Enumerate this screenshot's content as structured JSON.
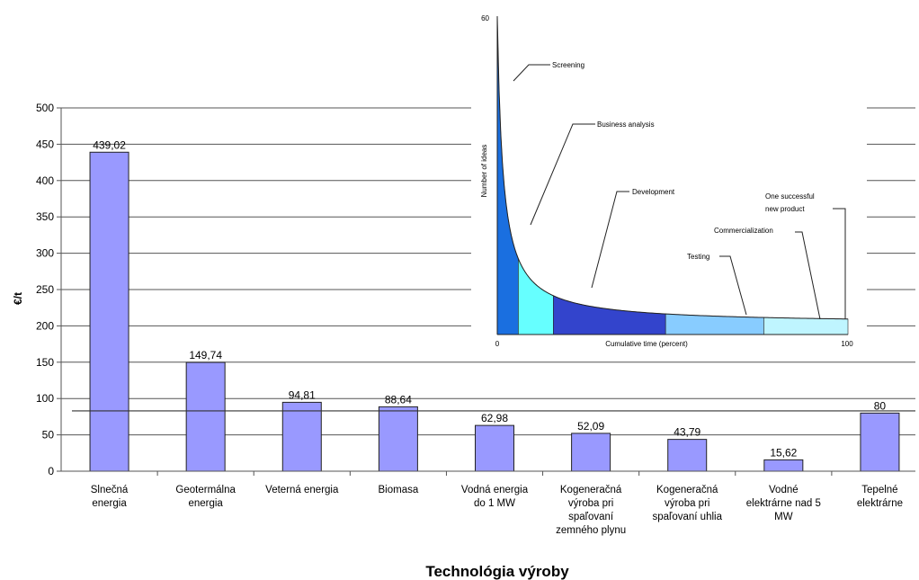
{
  "chart_data": [
    {
      "type": "bar",
      "xlabel": "Technológia výroby",
      "ylabel": "€/t",
      "ylim": [
        0,
        500
      ],
      "yticks": [
        0,
        50,
        100,
        150,
        200,
        250,
        300,
        350,
        400,
        450,
        500
      ],
      "reference_line": 83,
      "grid": true,
      "bar_color": "#9999ff",
      "categories": [
        [
          "Slnečná",
          "energia"
        ],
        [
          "Geotermálna",
          "energia"
        ],
        [
          "Veterná energia"
        ],
        [
          "Biomasa"
        ],
        [
          "Vodná energia",
          "do 1 MW"
        ],
        [
          "Kogeneračná",
          "výroba pri",
          "spaľovaní",
          "zemného plynu"
        ],
        [
          "Kogeneračná",
          "výroba pri",
          "spaľovaní uhlia"
        ],
        [
          "Vodné",
          "elektrárne nad 5",
          "MW"
        ],
        [
          "Tepelné",
          "elektrárne"
        ]
      ],
      "values": [
        439.02,
        149.74,
        94.81,
        88.64,
        62.98,
        52.09,
        43.79,
        15.62,
        80
      ],
      "value_labels": [
        "439,02",
        "149,74",
        "94,81",
        "88,64",
        "62,98",
        "52,09",
        "43,79",
        "15,62",
        "80"
      ]
    },
    {
      "type": "area",
      "ylabel": "Number of ideas",
      "xlabel": "Cumulative time (percent)",
      "xlim": [
        0,
        100
      ],
      "ylim": [
        0,
        60
      ],
      "xtick_labels": [
        "0",
        "100"
      ],
      "ytick_labels": [
        "60"
      ],
      "stages": [
        {
          "name": "Screening",
          "x_from": 0,
          "x_to": 6,
          "color": "#1a6fe0"
        },
        {
          "name": "Business analysis",
          "x_from": 6,
          "x_to": 16,
          "color": "#66ffff"
        },
        {
          "name": "Development",
          "x_from": 16,
          "x_to": 48,
          "color": "#3344cc"
        },
        {
          "name": "Testing",
          "x_from": 48,
          "x_to": 76,
          "color": "#88ccff"
        },
        {
          "name": "Commercialization",
          "x_from": 76,
          "x_to": 100,
          "color": "#bff5ff"
        }
      ],
      "annotation": [
        "One successful",
        "new product"
      ]
    }
  ]
}
